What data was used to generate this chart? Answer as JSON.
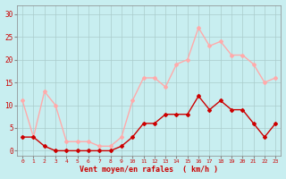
{
  "hours": [
    0,
    1,
    2,
    3,
    4,
    5,
    6,
    7,
    8,
    9,
    10,
    11,
    12,
    13,
    14,
    15,
    16,
    17,
    18,
    19,
    20,
    21,
    22,
    23
  ],
  "avg_wind": [
    3,
    3,
    1,
    0,
    0,
    0,
    0,
    0,
    0,
    1,
    3,
    6,
    6,
    8,
    8,
    8,
    12,
    9,
    11,
    9,
    9,
    6,
    3,
    6
  ],
  "gust_wind": [
    11,
    3,
    13,
    10,
    2,
    2,
    2,
    1,
    1,
    3,
    11,
    16,
    16,
    14,
    19,
    20,
    27,
    23,
    24,
    21,
    21,
    19,
    15,
    16
  ],
  "avg_color": "#cc0000",
  "gust_color": "#ffaaaa",
  "bg_color": "#c8eef0",
  "grid_color": "#aacccc",
  "xlabel": "Vent moyen/en rafales  ( km/h )",
  "ylabel_ticks": [
    0,
    5,
    10,
    15,
    20,
    25,
    30
  ],
  "ylim": [
    -1,
    32
  ],
  "xlim": [
    -0.5,
    23.5
  ]
}
